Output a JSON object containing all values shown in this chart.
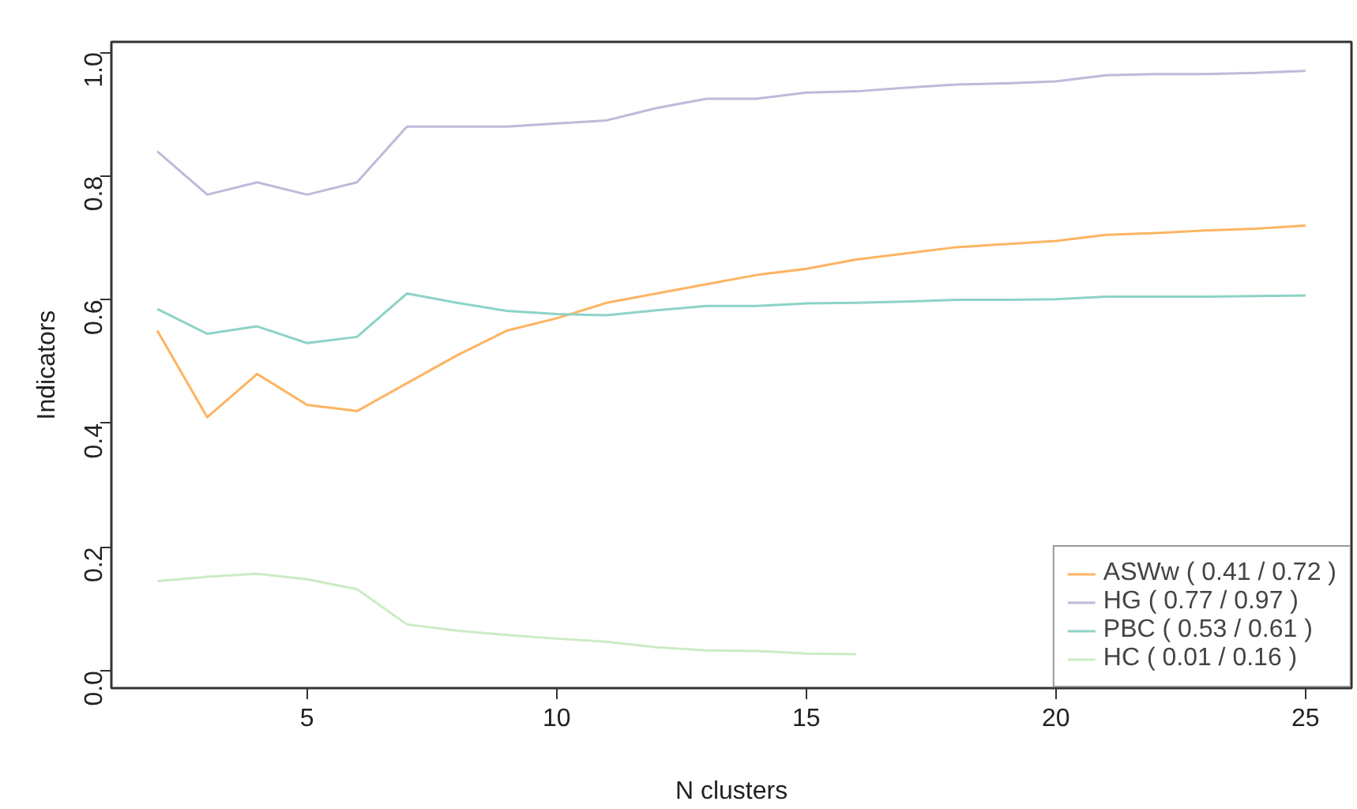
{
  "chart_data": {
    "type": "line",
    "xlabel": "N clusters",
    "ylabel": "Indicators",
    "x": [
      2,
      3,
      4,
      5,
      6,
      7,
      8,
      9,
      10,
      11,
      12,
      13,
      14,
      15,
      16,
      17,
      18,
      19,
      20,
      21,
      22,
      23,
      24,
      25
    ],
    "xlim": [
      1.08,
      25.92
    ],
    "xticks": [
      5,
      10,
      15,
      20,
      25
    ],
    "ylim": [
      -0.028,
      1.017
    ],
    "yticks": [
      {
        "value": 0,
        "label": "0.0"
      },
      0.2,
      0.4,
      0.6,
      0.8,
      {
        "value": 1,
        "label": "1.0"
      }
    ],
    "grid": false,
    "legend": "bottom right",
    "line_style": "solid",
    "marker": "none",
    "series": [
      {
        "name": "ASWw ( 0.41 / 0.72 )",
        "color": "#fdb462",
        "values": [
          0.55,
          0.41,
          0.48,
          0.43,
          0.42,
          0.465,
          0.51,
          0.55,
          0.57,
          0.595,
          0.61,
          0.625,
          0.64,
          0.65,
          0.665,
          0.675,
          0.685,
          0.69,
          0.695,
          0.705,
          0.708,
          0.712,
          0.715,
          0.72
        ]
      },
      {
        "name": "HG ( 0.77 / 0.97 )",
        "color": "#bebada",
        "values": [
          0.84,
          0.77,
          0.79,
          0.77,
          0.79,
          0.88,
          0.88,
          0.88,
          0.885,
          0.89,
          0.91,
          0.925,
          0.925,
          0.935,
          0.937,
          0.943,
          0.948,
          0.95,
          0.953,
          0.963,
          0.965,
          0.965,
          0.967,
          0.97
        ]
      },
      {
        "name": "PBC ( 0.53 / 0.61 )",
        "color": "#8dd3c7",
        "values": [
          0.585,
          0.545,
          0.557,
          0.53,
          0.54,
          0.61,
          0.595,
          0.582,
          0.577,
          0.575,
          0.583,
          0.59,
          0.59,
          0.594,
          0.595,
          0.597,
          0.6,
          0.6,
          0.601,
          0.605,
          0.605,
          0.605,
          0.606,
          0.607
        ]
      },
      {
        "name": "HC ( 0.01 / 0.16 )",
        "color": "#ccebc5",
        "values": [
          0.145,
          0.152,
          0.157,
          0.148,
          0.132,
          0.075,
          0.065,
          0.058,
          0.052,
          0.047,
          0.038,
          0.033,
          0.032,
          0.028,
          0.027,
          null,
          null,
          null,
          null,
          null,
          null,
          null,
          null,
          null
        ]
      }
    ]
  }
}
